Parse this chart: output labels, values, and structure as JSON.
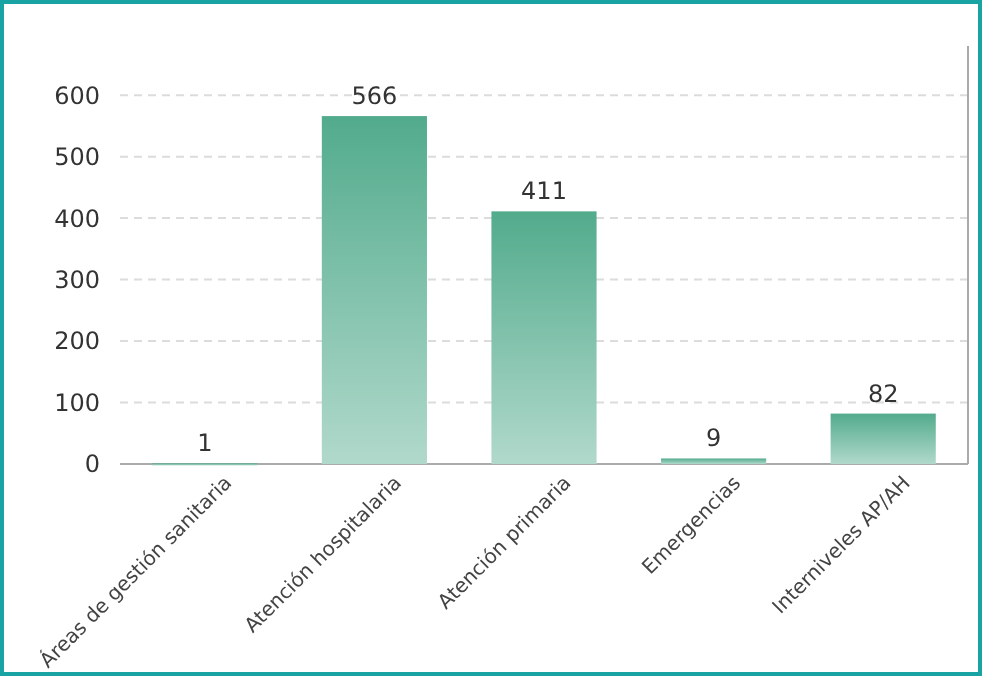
{
  "chart_data": {
    "type": "bar",
    "categories": [
      "Áreas de gestión sanitaria",
      "Atención hospitalaria",
      "Atención primaria",
      "Emergencias",
      "Interniveles AP/AH"
    ],
    "values": [
      1,
      566,
      411,
      9,
      82
    ],
    "color": "#52ab8c",
    "ylim": [
      0,
      680
    ],
    "yticks": [
      0,
      100,
      200,
      300,
      400,
      500,
      600
    ],
    "grid": "y",
    "data_labels": true
  }
}
